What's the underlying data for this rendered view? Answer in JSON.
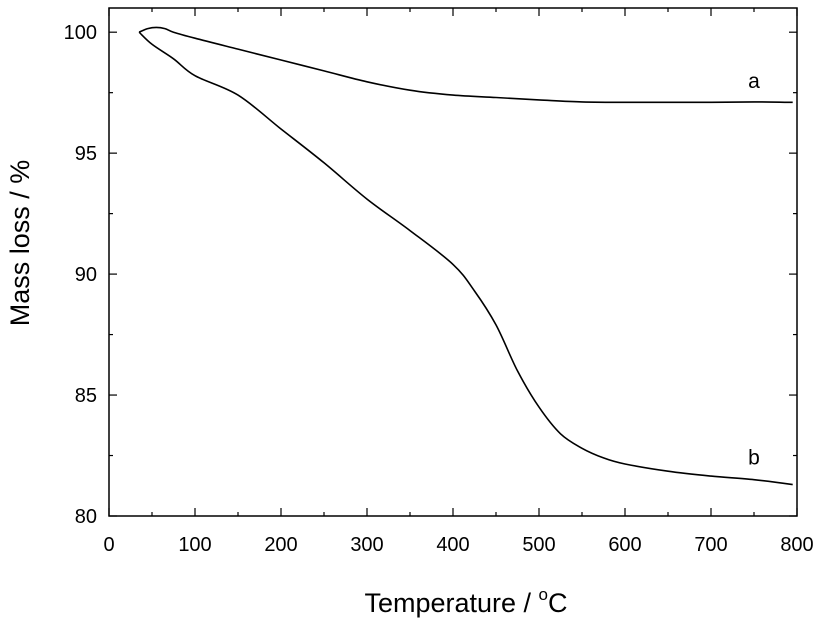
{
  "chart_data": {
    "type": "line",
    "xlabel": "Temperature / ",
    "xlabel_unit_sup": "o",
    "xlabel_unit": "C",
    "ylabel": "Mass loss / %",
    "xlim": [
      0,
      800
    ],
    "ylim": [
      80,
      101
    ],
    "xticks": [
      0,
      100,
      200,
      300,
      400,
      500,
      600,
      700,
      800
    ],
    "yticks": [
      80,
      85,
      90,
      95,
      100
    ],
    "grid": false,
    "series": [
      {
        "name": "a",
        "x": [
          35,
          45,
          55,
          65,
          75,
          100,
          150,
          200,
          250,
          300,
          350,
          400,
          450,
          500,
          550,
          600,
          650,
          700,
          750,
          795
        ],
        "y": [
          100.0,
          100.15,
          100.2,
          100.15,
          100.0,
          99.75,
          99.3,
          98.85,
          98.4,
          97.95,
          97.6,
          97.4,
          97.3,
          97.2,
          97.12,
          97.1,
          97.1,
          97.1,
          97.12,
          97.1
        ]
      },
      {
        "name": "b",
        "x": [
          35,
          50,
          75,
          100,
          150,
          200,
          250,
          300,
          350,
          400,
          425,
          450,
          475,
          500,
          525,
          550,
          575,
          600,
          650,
          700,
          750,
          795
        ],
        "y": [
          100.0,
          99.5,
          98.9,
          98.2,
          97.4,
          96.0,
          94.6,
          93.1,
          91.8,
          90.4,
          89.3,
          87.9,
          86.0,
          84.5,
          83.4,
          82.8,
          82.4,
          82.15,
          81.85,
          81.65,
          81.5,
          81.3
        ]
      }
    ]
  }
}
